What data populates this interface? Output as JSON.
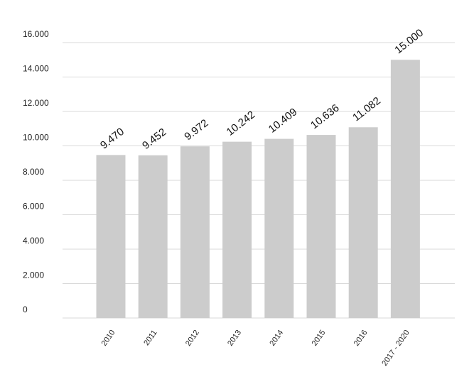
{
  "chart_data": {
    "type": "bar",
    "title": "",
    "xlabel": "",
    "ylabel": "",
    "categories": [
      "2010",
      "2011",
      "2012",
      "2013",
      "2014",
      "2015",
      "2016",
      "2017 - 2020"
    ],
    "values": [
      9470,
      9452,
      9972,
      10242,
      10409,
      10636,
      11082,
      15000
    ],
    "data_labels": [
      "9.470",
      "9.452",
      "9.972",
      "10.242",
      "10.409",
      "10.636",
      "11.082",
      "15.000"
    ],
    "y_ticks": [
      0,
      2000,
      4000,
      6000,
      8000,
      10000,
      12000,
      14000,
      16000
    ],
    "y_tick_labels": [
      "0",
      "2.000",
      "4.000",
      "6.000",
      "8.000",
      "10.000",
      "12.000",
      "14.000",
      "16.000"
    ],
    "ylim": [
      0,
      16000
    ],
    "grid": true,
    "legend": "none",
    "colors": {
      "bar": "#cccccc",
      "grid": "#d9d9d9",
      "text": "#222222"
    }
  }
}
